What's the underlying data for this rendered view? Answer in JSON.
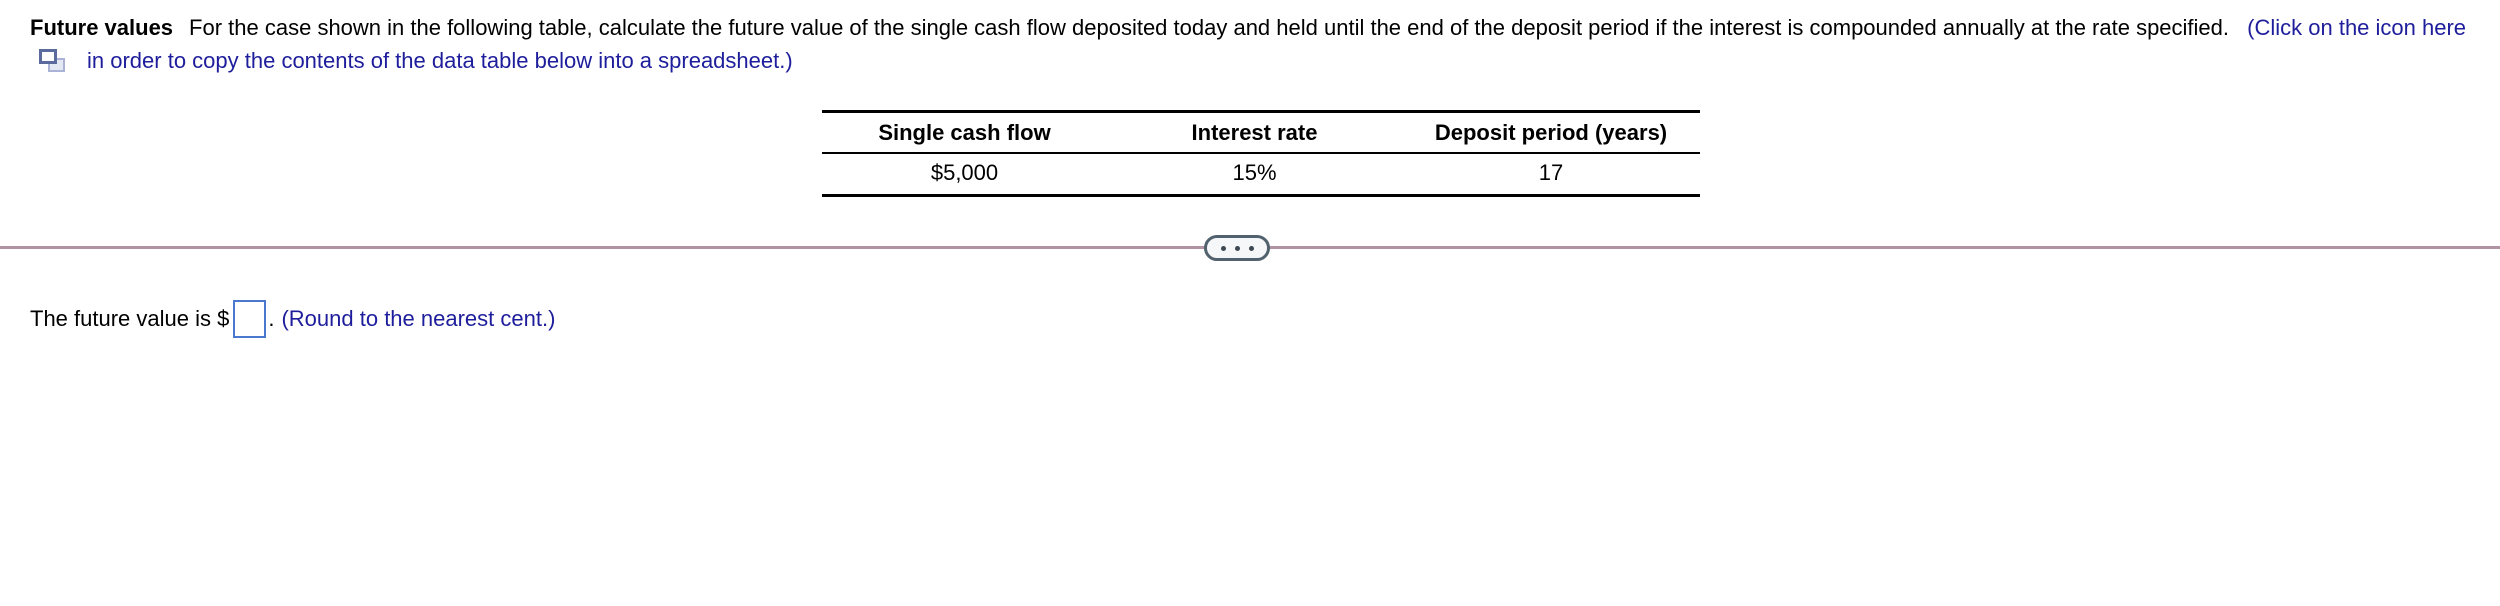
{
  "problem": {
    "title": "Future values",
    "statement": "For the case shown in the following table, calculate the future value of the single cash flow deposited today and held until the end of the deposit period if the interest is compounded annually at the rate specified.",
    "copy_instruction_before": "(Click on the icon here",
    "copy_instruction_after": "in order to copy the contents of the data table below into a spreadsheet.)"
  },
  "data_table": {
    "headers": [
      "Single cash flow",
      "Interest rate",
      "Deposit period (years)"
    ],
    "rows": [
      [
        "$5,000",
        "15%",
        "17"
      ]
    ]
  },
  "divider": {
    "ellipsis_icon": "three-dots"
  },
  "answer": {
    "prefix": "The future value is $",
    "input_value": "",
    "suffix": ".",
    "hint": "(Round to the nearest cent.)"
  },
  "icons": {
    "copy_icon": "overlapping-rectangles"
  },
  "colors": {
    "text_black": "#000000",
    "link_blue": "#1e1e9c",
    "input_border_blue": "#4a78cf",
    "divider_line": "#b191a2",
    "pill_border": "#51616e",
    "pill_fill": "#f6f7f8",
    "table_border": "#000000"
  }
}
